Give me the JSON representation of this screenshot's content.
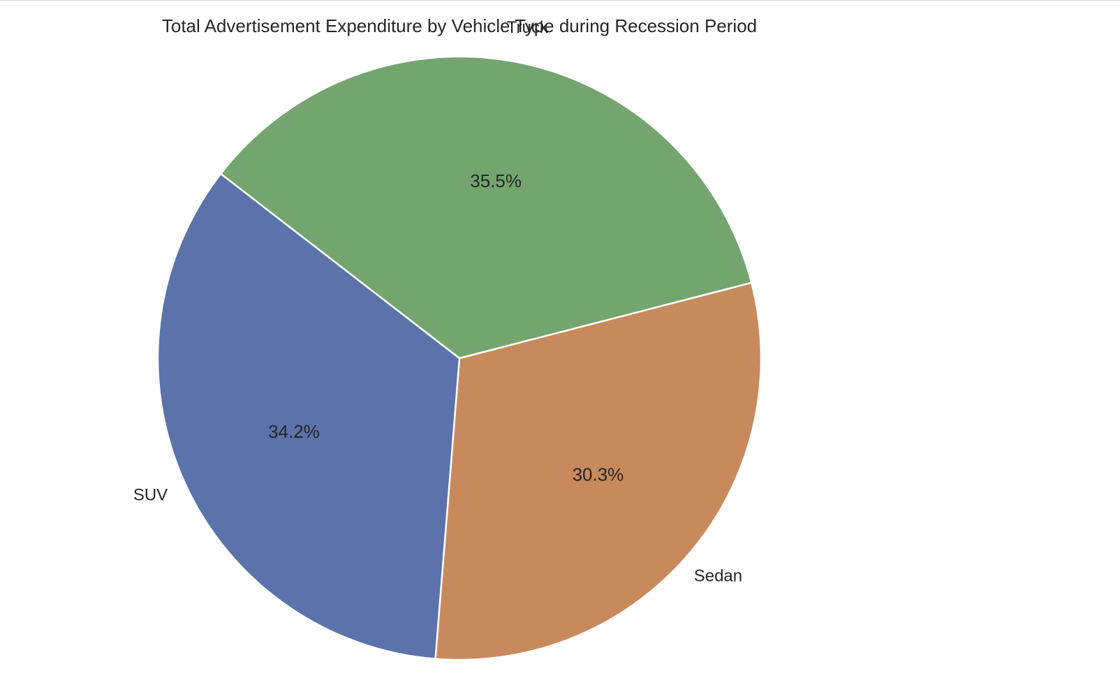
{
  "chart_data": {
    "type": "pie",
    "title": "Total Advertisement Expenditure by Vehicle Type during Recession Period",
    "slices": [
      {
        "label": "Sedan",
        "value": 30.3,
        "pct_label": "30.3%",
        "color": "#c88a5d"
      },
      {
        "label": "SUV",
        "value": 34.2,
        "pct_label": "34.2%",
        "color": "#5c72aa"
      },
      {
        "label": "Truck",
        "value": 35.5,
        "pct_label": "35.5%",
        "color": "#74a56f"
      }
    ],
    "start_angle_deg": -14.5,
    "direction": "clockwise"
  }
}
